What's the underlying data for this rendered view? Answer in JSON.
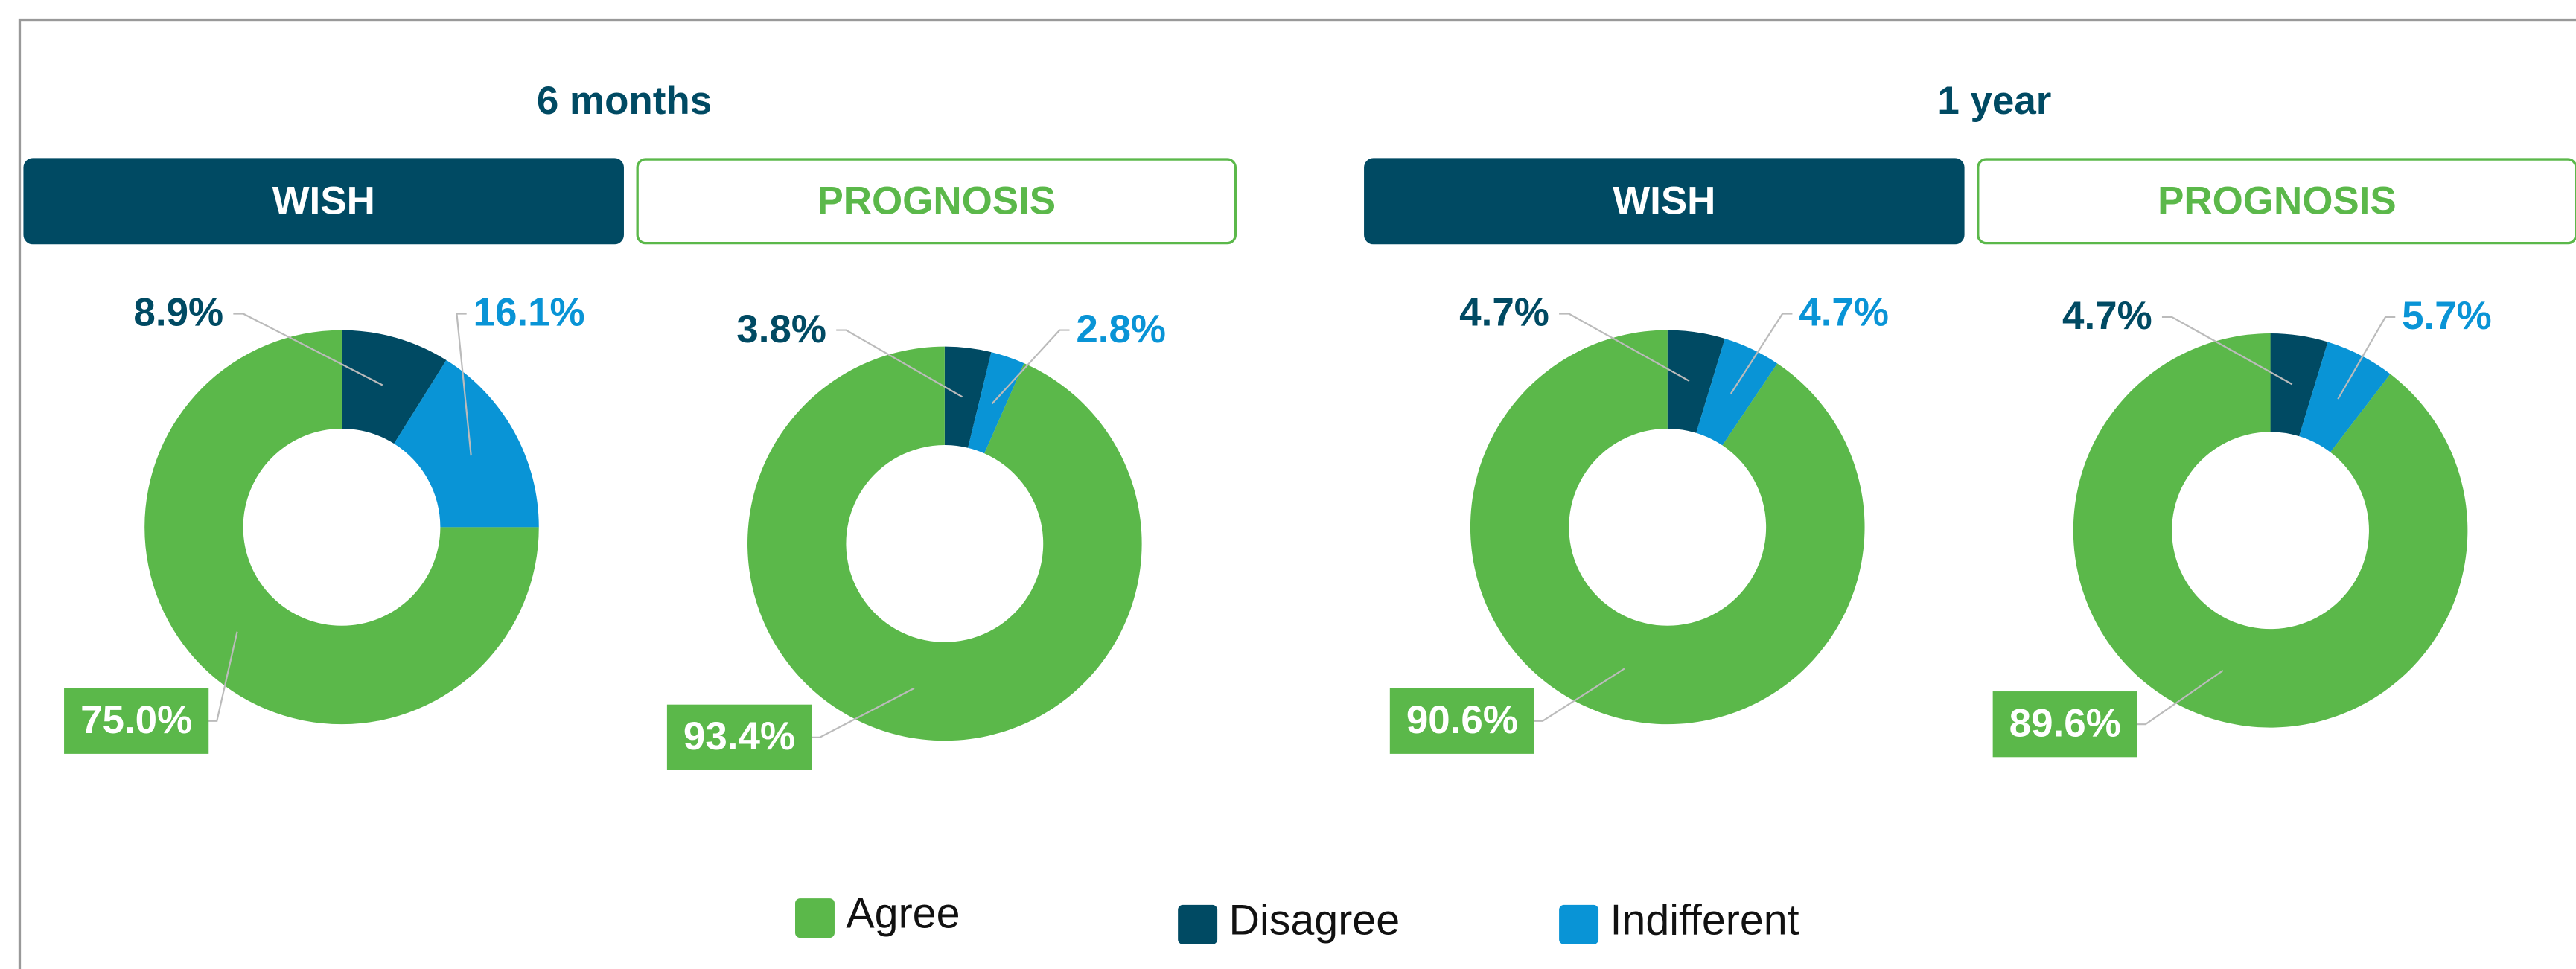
{
  "panels": [
    {
      "title": "6 months"
    },
    {
      "title": "1 year"
    }
  ],
  "legend": [
    {
      "name": "Agree",
      "color": "#5bb84a"
    },
    {
      "name": "Disagree",
      "color": "#004a63"
    },
    {
      "name": "Indifferent",
      "color": "#0994d6"
    }
  ],
  "chart_data": [
    {
      "type": "pie",
      "title": "WISH",
      "categories": [
        "Disagree",
        "Indifferent",
        "Agree"
      ],
      "values": [
        8.9,
        16.1,
        75.0
      ],
      "value_labels": [
        "8.9%",
        "16.1%",
        "75.0%"
      ],
      "colors": [
        "#004a63",
        "#0994d6",
        "#5bb84a"
      ]
    },
    {
      "type": "pie",
      "title": "PROGNOSIS",
      "categories": [
        "Disagree",
        "Indifferent",
        "Agree"
      ],
      "values": [
        3.8,
        2.8,
        93.4
      ],
      "value_labels": [
        "3.8%",
        "2.8%",
        "93.4%"
      ],
      "colors": [
        "#004a63",
        "#0994d6",
        "#5bb84a"
      ]
    },
    {
      "type": "pie",
      "title": "WISH",
      "categories": [
        "Disagree",
        "Indifferent",
        "Agree"
      ],
      "values": [
        4.7,
        4.7,
        90.6
      ],
      "value_labels": [
        "4.7%",
        "4.7%",
        "90.6%"
      ],
      "colors": [
        "#004a63",
        "#0994d6",
        "#5bb84a"
      ]
    },
    {
      "type": "pie",
      "title": "PROGNOSIS",
      "categories": [
        "Disagree",
        "Indifferent",
        "Agree"
      ],
      "values": [
        4.7,
        5.7,
        89.6
      ],
      "value_labels": [
        "4.7%",
        "5.7%",
        "89.6%"
      ],
      "colors": [
        "#004a63",
        "#0994d6",
        "#5bb84a"
      ]
    }
  ]
}
